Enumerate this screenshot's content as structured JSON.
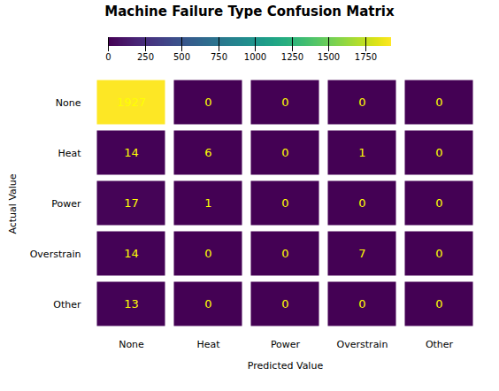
{
  "chart_data": {
    "type": "heatmap",
    "title": "Machine Failure Type Confusion Matrix",
    "xlabel": "Predicted Value",
    "ylabel": "Actual Value",
    "categories": [
      "None",
      "Heat",
      "Power",
      "Overstrain",
      "Other"
    ],
    "matrix": [
      [
        1927,
        0,
        0,
        0,
        0
      ],
      [
        14,
        6,
        0,
        1,
        0
      ],
      [
        17,
        1,
        0,
        0,
        0
      ],
      [
        14,
        0,
        0,
        7,
        0
      ],
      [
        13,
        0,
        0,
        0,
        0
      ]
    ],
    "color": "viridis",
    "colorbar_range": [
      0,
      1927
    ],
    "colorbar_ticks": [
      0,
      250,
      500,
      750,
      1000,
      1250,
      1500,
      1750
    ],
    "data_labels": true,
    "label_color": "yellow"
  }
}
